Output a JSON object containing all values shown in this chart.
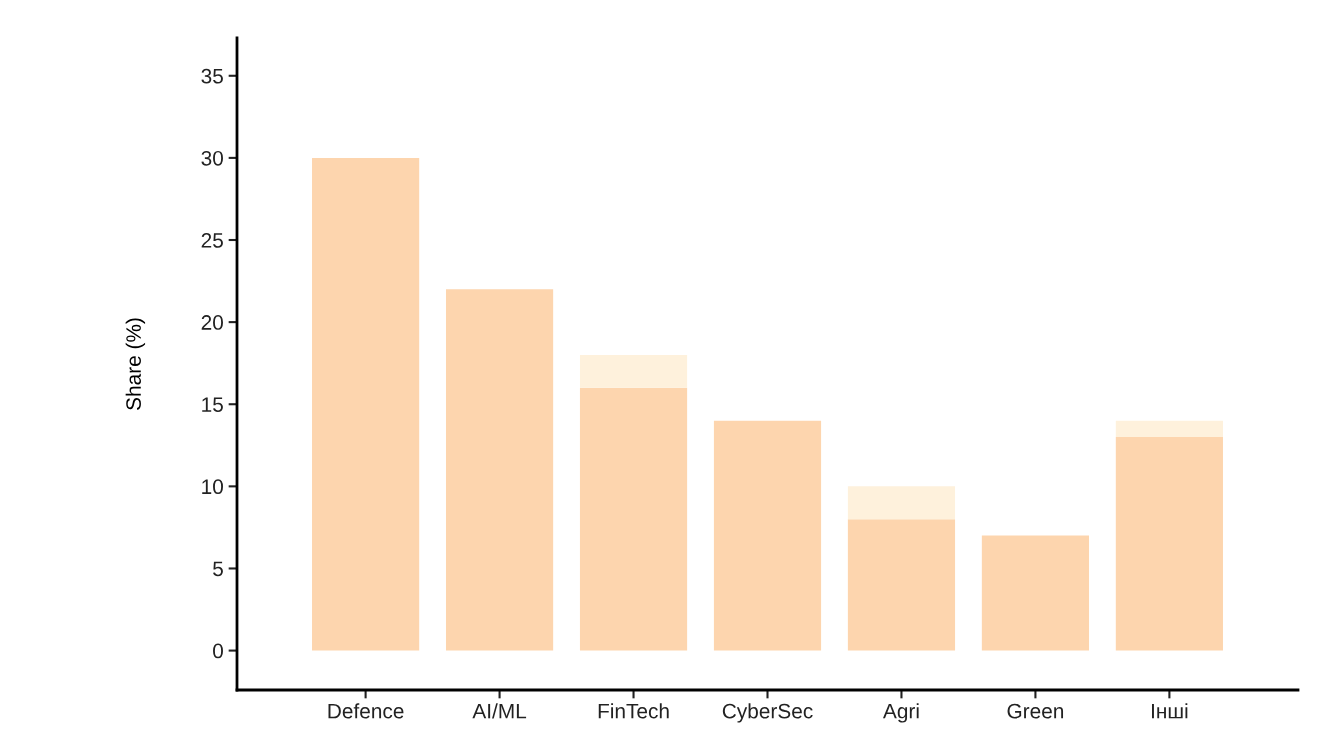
{
  "chart_data": {
    "type": "bar",
    "ylabel": "Share (%)",
    "categories": [
      "Defence",
      "AI/ML",
      "FinTech",
      "CyberSec",
      "Agri",
      "Green",
      "Інші"
    ],
    "stacked": true,
    "series": [
      {
        "color": "#fdd5ae",
        "values": [
          30,
          22,
          16,
          14,
          8,
          7,
          13
        ]
      },
      {
        "color": "#fef1dc",
        "values": [
          0,
          0,
          2,
          0,
          2,
          0,
          1
        ]
      }
    ],
    "ylim": [
      -2.4,
      37.3
    ],
    "yticks": [
      0,
      5,
      10,
      15,
      20,
      25,
      30,
      35
    ],
    "grid": false,
    "legend": false
  }
}
